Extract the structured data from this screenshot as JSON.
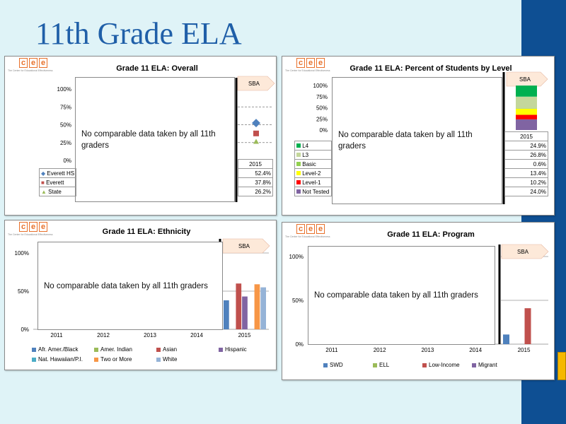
{
  "slide_title": "11th Grade ELA",
  "logo": {
    "letters": [
      "c",
      "e",
      "e"
    ],
    "tagline": "The Center for Educational Effectiveness"
  },
  "colors": {
    "blue": "#4f81bd",
    "red": "#c0504d",
    "green": "#9bbb59",
    "purple": "#8064a2",
    "teal": "#4bacc6",
    "orange": "#f79646",
    "light_blue": "#95b3d7",
    "l4": "#00b050",
    "l3": "#c4d79b",
    "basic": "#92d050",
    "level2": "#ffff00",
    "level1": "#ff0000",
    "not_tested": "#8064a2",
    "sba_arrow": "#fde9d9",
    "slide_bg": "#dff3f7",
    "brand_bar": "#0e4f93",
    "title_color": "#1f5fa8"
  },
  "panels": {
    "overall": {
      "title": "Grade 11 ELA: Overall",
      "no_data": "No comparable data taken by all 11th graders",
      "sba_label": "SBA",
      "year": "2015",
      "y_ticks": [
        "100%",
        "75%",
        "50%",
        "25%",
        "0%"
      ],
      "rows": [
        {
          "label": "Everett HS",
          "value": "52.4%",
          "icon": "diamond-icon",
          "color": "#4f81bd"
        },
        {
          "label": "Everett",
          "value": "37.8%",
          "icon": "square-icon",
          "color": "#c0504d"
        },
        {
          "label": "State",
          "value": "26.2%",
          "icon": "triangle-icon",
          "color": "#9bbb59"
        }
      ]
    },
    "levels": {
      "title": "Grade 11 ELA: Percent of Students by Level",
      "no_data": "No comparable data taken by all 11th graders",
      "sba_label": "SBA",
      "year": "2015",
      "y_ticks": [
        "100%",
        "75%",
        "50%",
        "25%",
        "0%"
      ],
      "rows": [
        {
          "label": "L4",
          "value": "24.9%",
          "color": "#00b050"
        },
        {
          "label": "L3",
          "value": "26.8%",
          "color": "#c4d79b"
        },
        {
          "label": "Basic",
          "value": "0.6%",
          "color": "#92d050"
        },
        {
          "label": "Level-2",
          "value": "13.4%",
          "color": "#ffff00"
        },
        {
          "label": "Level-1",
          "value": "10.2%",
          "color": "#ff0000"
        },
        {
          "label": "Not Tested",
          "value": "24.0%",
          "color": "#8064a2"
        }
      ]
    },
    "ethnicity": {
      "title": "Grade 11 ELA: Ethnicity",
      "no_data": "No comparable data taken by all 11th graders",
      "sba_label": "SBA",
      "y_ticks": [
        "100%",
        "50%",
        "0%"
      ],
      "years": [
        "2011",
        "2012",
        "2013",
        "2014",
        "2015"
      ],
      "legend": [
        {
          "label": "Afr. Amer./Black",
          "color": "#4f81bd"
        },
        {
          "label": "Amer. Indian",
          "color": "#9bbb59"
        },
        {
          "label": "Asian",
          "color": "#c0504d"
        },
        {
          "label": "Hispanic",
          "color": "#8064a2"
        },
        {
          "label": "Nat. Hawaiian/P.I.",
          "color": "#4bacc6"
        },
        {
          "label": "Two or More",
          "color": "#f79646"
        },
        {
          "label": "White",
          "color": "#95b3d7"
        }
      ]
    },
    "program": {
      "title": "Grade 11 ELA: Program",
      "no_data": "No comparable data taken by all 11th graders",
      "sba_label": "SBA",
      "y_ticks": [
        "100%",
        "50%",
        "0%"
      ],
      "years": [
        "2011",
        "2012",
        "2013",
        "2014",
        "2015"
      ],
      "legend": [
        {
          "label": "SWD",
          "color": "#4f81bd"
        },
        {
          "label": "ELL",
          "color": "#9bbb59"
        },
        {
          "label": "Low-Income",
          "color": "#c0504d"
        },
        {
          "label": "Migrant",
          "color": "#8064a2"
        }
      ]
    }
  },
  "chart_data": [
    {
      "type": "scatter",
      "title": "Grade 11 ELA: Overall",
      "x": [
        "2015"
      ],
      "ylim": [
        0,
        100
      ],
      "series": [
        {
          "name": "Everett HS",
          "values": [
            52.4
          ]
        },
        {
          "name": "Everett",
          "values": [
            37.8
          ]
        },
        {
          "name": "State",
          "values": [
            26.2
          ]
        }
      ],
      "annotations": [
        "SBA",
        "No comparable data taken by all 11th graders"
      ]
    },
    {
      "type": "bar",
      "stacked": true,
      "title": "Grade 11 ELA: Percent of Students by Level",
      "categories": [
        "2015"
      ],
      "ylim": [
        0,
        100
      ],
      "series": [
        {
          "name": "L4",
          "values": [
            24.9
          ]
        },
        {
          "name": "L3",
          "values": [
            26.8
          ]
        },
        {
          "name": "Basic",
          "values": [
            0.6
          ]
        },
        {
          "name": "Level-2",
          "values": [
            13.4
          ]
        },
        {
          "name": "Level-1",
          "values": [
            10.2
          ]
        },
        {
          "name": "Not Tested",
          "values": [
            24.0
          ]
        }
      ],
      "annotations": [
        "SBA",
        "No comparable data taken by all 11th graders"
      ]
    },
    {
      "type": "bar",
      "title": "Grade 11 ELA: Ethnicity",
      "categories": [
        "2011",
        "2012",
        "2013",
        "2014",
        "2015"
      ],
      "ylim": [
        0,
        100
      ],
      "series": [
        {
          "name": "Afr. Amer./Black",
          "values": [
            null,
            null,
            null,
            null,
            38
          ]
        },
        {
          "name": "Amer. Indian",
          "values": [
            null,
            null,
            null,
            null,
            null
          ]
        },
        {
          "name": "Asian",
          "values": [
            null,
            null,
            null,
            null,
            60
          ]
        },
        {
          "name": "Hispanic",
          "values": [
            null,
            null,
            null,
            null,
            43
          ]
        },
        {
          "name": "Nat. Hawaiian/P.I.",
          "values": [
            null,
            null,
            null,
            null,
            null
          ]
        },
        {
          "name": "Two or More",
          "values": [
            null,
            null,
            null,
            null,
            59
          ]
        },
        {
          "name": "White",
          "values": [
            null,
            null,
            null,
            null,
            55
          ]
        }
      ],
      "annotations": [
        "SBA",
        "No comparable data taken by all 11th graders"
      ]
    },
    {
      "type": "bar",
      "title": "Grade 11 ELA: Program",
      "categories": [
        "2011",
        "2012",
        "2013",
        "2014",
        "2015"
      ],
      "ylim": [
        0,
        100
      ],
      "series": [
        {
          "name": "SWD",
          "values": [
            null,
            null,
            null,
            null,
            11
          ]
        },
        {
          "name": "ELL",
          "values": [
            null,
            null,
            null,
            null,
            null
          ]
        },
        {
          "name": "Low-Income",
          "values": [
            null,
            null,
            null,
            null,
            41
          ]
        },
        {
          "name": "Migrant",
          "values": [
            null,
            null,
            null,
            null,
            null
          ]
        }
      ],
      "annotations": [
        "SBA",
        "No comparable data taken by all 11th graders"
      ]
    }
  ]
}
